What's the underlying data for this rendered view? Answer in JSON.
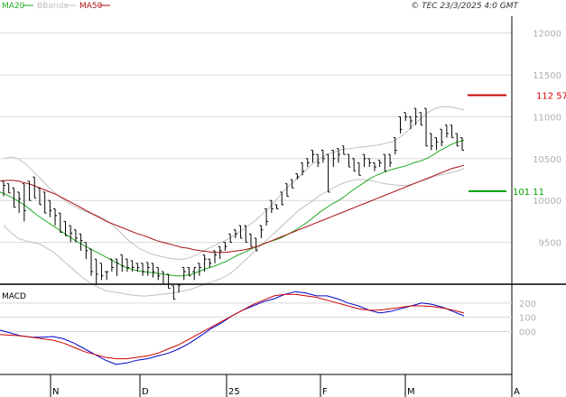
{
  "header": {
    "legend": [
      {
        "label": "MA20",
        "color": "#22aa22"
      },
      {
        "label": "BBands",
        "color": "#c0c0c0"
      },
      {
        "label": "MA50",
        "color": "#aa1111"
      }
    ],
    "copyright": "© TEC 23/3/2025 4:0 GMT"
  },
  "chart_data": [
    {
      "type": "line",
      "title": "",
      "y_ticks": [
        "12000",
        "11500",
        "11000",
        "10500",
        "10000",
        "9500"
      ],
      "x_ticks": [
        "N",
        "D",
        "25",
        "F",
        "M",
        "A"
      ],
      "ylim": [
        9000,
        12200
      ],
      "levels": [
        {
          "label": "112 57",
          "value": 11257,
          "color": "#cc0000"
        },
        {
          "label": "101 11",
          "value": 10111,
          "color": "#00a000"
        }
      ],
      "bars": [
        [
          10230,
          10100,
          10050,
          10180
        ],
        [
          10200,
          10120,
          10100,
          10090
        ],
        [
          10150,
          9980,
          9950,
          9920
        ],
        [
          10100,
          9900,
          9850,
          10020
        ],
        [
          10200,
          9800,
          9750,
          9880
        ],
        [
          10230,
          10090,
          10050,
          10000
        ],
        [
          10280,
          10220,
          10150,
          10030
        ],
        [
          10150,
          10080,
          10000,
          9950
        ],
        [
          10100,
          9930,
          9900,
          9850
        ],
        [
          10000,
          9820,
          9800,
          9880
        ],
        [
          9900,
          9740,
          9700,
          9820
        ],
        [
          9850,
          9790,
          9650,
          9620
        ],
        [
          9750,
          9680,
          9600,
          9580
        ],
        [
          9700,
          9590,
          9500,
          9610
        ],
        [
          9650,
          9560,
          9500,
          9550
        ],
        [
          9600,
          9450,
          9400,
          9520
        ],
        [
          9500,
          9370,
          9300,
          9400
        ],
        [
          9420,
          9230,
          9100,
          9150
        ],
        [
          9300,
          9100,
          9000,
          9120
        ],
        [
          9250,
          9150,
          9050,
          9100
        ],
        [
          9150,
          9090,
          9050,
          9150
        ],
        [
          9300,
          9220,
          9150,
          9200
        ],
        [
          9300,
          9160,
          9100,
          9250
        ],
        [
          9350,
          9200,
          9150,
          9220
        ],
        [
          9300,
          9220,
          9150,
          9200
        ],
        [
          9280,
          9180,
          9150,
          9200
        ],
        [
          9250,
          9170,
          9150,
          9200
        ],
        [
          9250,
          9190,
          9100,
          9150
        ],
        [
          9260,
          9180,
          9100,
          9200
        ],
        [
          9250,
          9120,
          9080,
          9150
        ],
        [
          9200,
          9100,
          9050,
          9100
        ],
        [
          9150,
          9080,
          9000,
          9000
        ],
        [
          9120,
          9000,
          8950,
          8950
        ],
        [
          8980,
          8900,
          8850,
          8820
        ],
        [
          9000,
          8950,
          8900,
          8990
        ],
        [
          9200,
          9100,
          9050,
          9150
        ],
        [
          9200,
          9150,
          9100,
          9100
        ],
        [
          9150,
          9120,
          9050,
          9200
        ],
        [
          9250,
          9120,
          9100,
          9200
        ],
        [
          9350,
          9200,
          9150,
          9300
        ],
        [
          9300,
          9250,
          9200,
          9250
        ],
        [
          9400,
          9300,
          9250,
          9350
        ],
        [
          9450,
          9380,
          9300,
          9400
        ],
        [
          9500,
          9440,
          9400,
          9450
        ],
        [
          9600,
          9550,
          9500,
          9500
        ],
        [
          9650,
          9620,
          9550,
          9600
        ],
        [
          9700,
          9630,
          9600,
          9550
        ],
        [
          9700,
          9580,
          9550,
          9500
        ],
        [
          9600,
          9520,
          9450,
          9450
        ],
        [
          9550,
          9500,
          9450,
          9400
        ],
        [
          9700,
          9600,
          9550,
          9650
        ],
        [
          9900,
          9800,
          9700,
          9750
        ],
        [
          10000,
          9950,
          9850,
          9900
        ],
        [
          9950,
          9920,
          9900,
          9900
        ],
        [
          10100,
          9950,
          9950,
          9950
        ],
        [
          10200,
          10060,
          10100,
          10050
        ],
        [
          10250,
          10200,
          10150,
          10150
        ],
        [
          10320,
          10300,
          10250,
          10280
        ],
        [
          10450,
          10400,
          10300,
          10350
        ],
        [
          10500,
          10400,
          10400,
          10450
        ],
        [
          10600,
          10500,
          10450,
          10550
        ],
        [
          10550,
          10500,
          10400,
          10450
        ],
        [
          10600,
          10550,
          10450,
          10500
        ],
        [
          10550,
          10410,
          10400,
          10100
        ],
        [
          10600,
          10450,
          10400,
          10500
        ],
        [
          10620,
          10500,
          10450,
          10550
        ],
        [
          10650,
          10600,
          10550,
          10550
        ],
        [
          10550,
          10450,
          10400,
          10400
        ],
        [
          10500,
          10450,
          10380,
          10350
        ],
        [
          10450,
          10400,
          10350,
          10300
        ],
        [
          10550,
          10450,
          10400,
          10500
        ],
        [
          10500,
          10450,
          10400,
          10450
        ],
        [
          10450,
          10450,
          10350,
          10400
        ],
        [
          10480,
          10450,
          10400,
          10450
        ],
        [
          10550,
          10450,
          10400,
          10350
        ],
        [
          10550,
          10500,
          10400,
          10450
        ],
        [
          10750,
          10650,
          10550,
          10600
        ],
        [
          11000,
          10900,
          10800,
          10850
        ],
        [
          11050,
          10950,
          10950,
          11000
        ],
        [
          11000,
          10900,
          10850,
          10950
        ],
        [
          11100,
          10950,
          10900,
          11000
        ],
        [
          11050,
          11000,
          10900,
          10900
        ],
        [
          11100,
          10800,
          10700,
          10650
        ],
        [
          10800,
          10750,
          10600,
          10650
        ],
        [
          10750,
          10650,
          10600,
          10700
        ],
        [
          10850,
          10750,
          10650,
          10700
        ],
        [
          10900,
          10850,
          10750,
          10800
        ],
        [
          10900,
          10850,
          10800,
          10750
        ],
        [
          10800,
          10700,
          10650,
          10650
        ],
        [
          10750,
          10650,
          10600,
          10600
        ]
      ],
      "series": [
        {
          "name": "MA20",
          "color": "#22aa22",
          "values": [
            10100,
            10070,
            10030,
            9990,
            9940,
            9880,
            9820,
            9770,
            9720,
            9670,
            9620,
            9570,
            9520,
            9480,
            9440,
            9400,
            9360,
            9320,
            9280,
            9240,
            9200,
            9180,
            9160,
            9150,
            9140,
            9130,
            9120,
            9110,
            9100,
            9100,
            9110,
            9130,
            9160,
            9190,
            9210,
            9240,
            9270,
            9310,
            9350,
            9380,
            9420,
            9450,
            9480,
            9510,
            9530,
            9560,
            9600,
            9640,
            9690,
            9740,
            9800,
            9860,
            9910,
            9960,
            10000,
            10050,
            10110,
            10160,
            10210,
            10260,
            10300,
            10330,
            10360,
            10380,
            10400,
            10420,
            10450,
            10470,
            10500,
            10540,
            10590,
            10630,
            10670,
            10700,
            10720
          ]
        },
        {
          "name": "MA50",
          "color": "#aa1111",
          "values": [
            10230,
            10240,
            10240,
            10230,
            10210,
            10190,
            10160,
            10130,
            10100,
            10070,
            10030,
            9990,
            9950,
            9910,
            9870,
            9830,
            9790,
            9750,
            9720,
            9690,
            9660,
            9630,
            9600,
            9580,
            9550,
            9520,
            9500,
            9480,
            9460,
            9440,
            9430,
            9410,
            9400,
            9390,
            9380,
            9380,
            9380,
            9390,
            9400,
            9410,
            9430,
            9450,
            9480,
            9510,
            9540,
            9570,
            9600,
            9630,
            9660,
            9690,
            9720,
            9750,
            9780,
            9810,
            9840,
            9870,
            9900,
            9930,
            9960,
            9990,
            10020,
            10050,
            10080,
            10110,
            10140,
            10170,
            10200,
            10230,
            10260,
            10290,
            10320,
            10350,
            10380,
            10400,
            10420
          ]
        },
        {
          "name": "BBands upper",
          "color": "#c0c0c0",
          "values": [
            10500,
            10520,
            10500,
            10440,
            10360,
            10270,
            10180,
            10100,
            10030,
            9970,
            9920,
            9880,
            9850,
            9820,
            9780,
            9720,
            9640,
            9550,
            9480,
            9420,
            9380,
            9350,
            9330,
            9310,
            9300,
            9300,
            9320,
            9360,
            9410,
            9450,
            9490,
            9530,
            9580,
            9640,
            9700,
            9760,
            9840,
            9920,
            10020,
            10120,
            10200,
            10280,
            10360,
            10440,
            10500,
            10550,
            10580,
            10610,
            10620,
            10630,
            10640,
            10650,
            10660,
            10680,
            10700,
            10750,
            10820,
            10900,
            10980,
            11050,
            11100,
            11120,
            11120,
            11100,
            11080
          ]
        },
        {
          "name": "BBands lower",
          "color": "#c0c0c0",
          "values": [
            9700,
            9620,
            9550,
            9520,
            9500,
            9480,
            9430,
            9380,
            9300,
            9230,
            9150,
            9080,
            9020,
            8970,
            8930,
            8910,
            8900,
            8880,
            8870,
            8860,
            8860,
            8870,
            8880,
            8890,
            8900,
            8920,
            8940,
            8970,
            9000,
            9030,
            9060,
            9100,
            9160,
            9240,
            9320,
            9400,
            9480,
            9560,
            9640,
            9720,
            9800,
            9880,
            9940,
            10000,
            10060,
            10110,
            10160,
            10200,
            10230,
            10250,
            10250,
            10240,
            10220,
            10200,
            10190,
            10180,
            10180,
            10200,
            10230,
            10260,
            10290,
            10310,
            10330,
            10350,
            10380
          ]
        }
      ]
    },
    {
      "type": "line",
      "title": "MACD",
      "y_ticks": [
        "200",
        "100",
        "000"
      ],
      "ylim": [
        -300,
        300
      ],
      "series": [
        {
          "name": "MACD",
          "color": "#0000cc",
          "values": [
            10,
            -10,
            -30,
            -40,
            -40,
            -35,
            -50,
            -80,
            -120,
            -160,
            -200,
            -230,
            -220,
            -200,
            -190,
            -170,
            -150,
            -120,
            -80,
            -30,
            20,
            60,
            110,
            150,
            180,
            210,
            230,
            260,
            280,
            270,
            250,
            250,
            230,
            200,
            180,
            150,
            130,
            140,
            160,
            180,
            200,
            190,
            170,
            140,
            110
          ]
        },
        {
          "name": "Signal",
          "color": "#cc0000",
          "values": [
            -20,
            -25,
            -30,
            -40,
            -50,
            -60,
            -80,
            -110,
            -140,
            -160,
            -180,
            -190,
            -190,
            -180,
            -170,
            -150,
            -120,
            -90,
            -50,
            -10,
            30,
            70,
            110,
            150,
            190,
            220,
            250,
            260,
            260,
            250,
            240,
            220,
            200,
            180,
            160,
            150,
            150,
            160,
            170,
            180,
            180,
            175,
            165,
            150,
            130
          ]
        }
      ]
    }
  ]
}
